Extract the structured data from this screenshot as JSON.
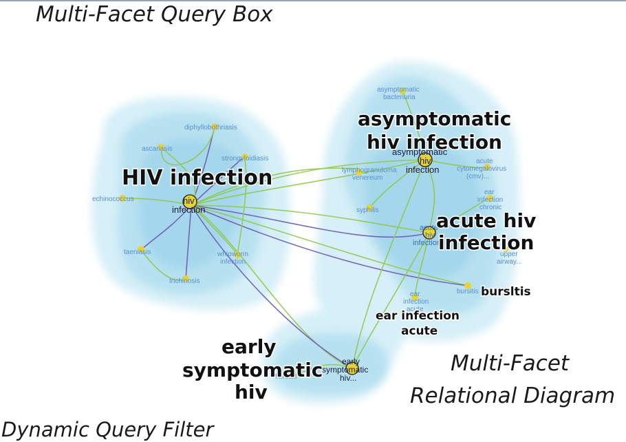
{
  "captions": {
    "query_box": "Multi-Facet Query Box",
    "dynamic_filter": "Dynamic Query Filter",
    "relational_line1": "Multi-Facet",
    "relational_line2": "Relational Diagram"
  },
  "colors": {
    "cluster_fill": "#bfe6f3",
    "edge_green": "#8ec63f",
    "edge_purple": "#6a4fb0",
    "node_yellow": "#e6d23a",
    "small_label": "#5a8fd0"
  },
  "focus_labels": {
    "hiv_infection": "HIV infection",
    "asym_line1": "asymptomatic",
    "asym_line2": "hiv infection",
    "acute_line1": "acute hiv",
    "acute_line2": "infection",
    "early_line1": "early",
    "early_line2": "symptomatic",
    "early_line3": "hiv",
    "bursitis": "bursltis",
    "ear_line1": "ear infection",
    "ear_line2": "acute"
  },
  "center_labels": {
    "hiv1": "hiv",
    "hiv2": "infection",
    "asym1": "asymptomatic",
    "asym2": "hiv",
    "asym3": "infection",
    "acute1": "acute",
    "acute2": "hiv",
    "acute3": "infection",
    "early1": "early",
    "early2": "symptomatic",
    "early3": "hiv..."
  },
  "small_labels": {
    "diphyllobothriasis": "diphyllobothriasis",
    "ascariasis": "ascariasis",
    "strongyloidiasis": "strongyloidiasis",
    "echinococcus": "echinococcus",
    "taeniasis": "taeniasis",
    "whipworm1": "whipworm",
    "whipworm2": "infection",
    "trichinosis": "trichinosis",
    "asym_bact1": "asymptomatic",
    "asym_bact2": "bacteriuria",
    "lymphogranuloma1": "lymphogranuloma",
    "lymphogranuloma2": "venereum",
    "cmv1": "acute",
    "cmv2": "cytomegalovirus",
    "cmv3": "(cmv)...",
    "ear_chronic1": "ear",
    "ear_chronic2": "infection",
    "ear_chronic3": "chronic",
    "syphilis": "syphilis",
    "upper1": "upper",
    "upper2": "airway...",
    "bursitis_small": "bursitis",
    "ear_acute1": "ear",
    "ear_acute2": "infection",
    "ear_acute3": "acute",
    "fibrosis": "fibrosis"
  }
}
